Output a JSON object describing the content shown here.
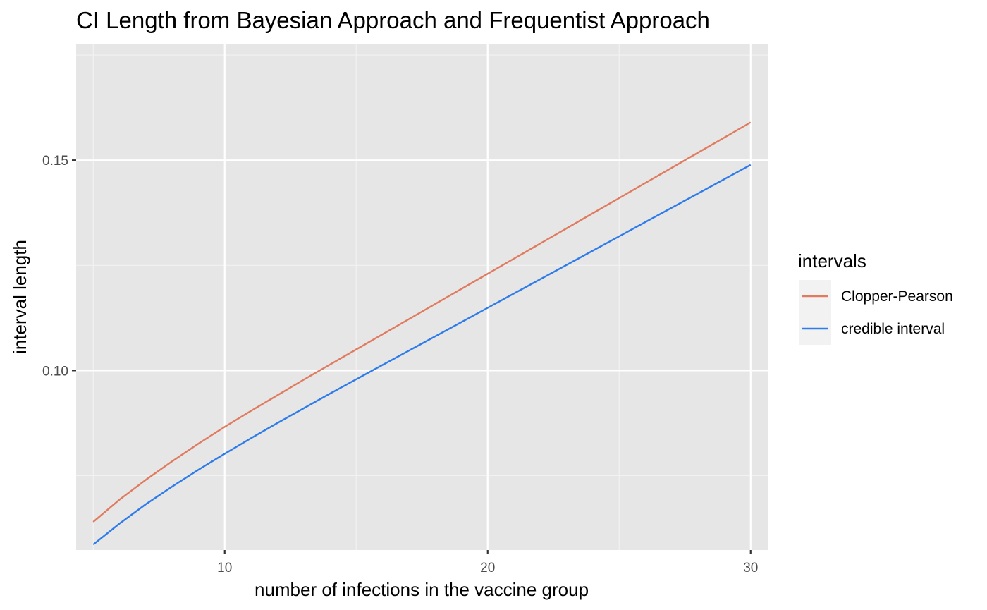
{
  "chart_data": {
    "type": "line",
    "title": "CI Length from Bayesian Approach and Frequentist Approach",
    "xlabel": "number of infections in the vaccine group",
    "ylabel": "interval length",
    "xlim": [
      4.35,
      30.65
    ],
    "ylim": [
      0.0573,
      0.1777
    ],
    "x_ticks": [
      10,
      20,
      30
    ],
    "x_tick_labels": [
      "10",
      "20",
      "30"
    ],
    "x_minor_ticks": [
      5,
      15,
      25
    ],
    "y_ticks": [
      0.1,
      0.15
    ],
    "y_tick_labels": [
      "0.10",
      "0.15"
    ],
    "y_minor_ticks": [
      0.075,
      0.125,
      0.175
    ],
    "grid": true,
    "legend": {
      "title": "intervals",
      "position": "right"
    },
    "x": [
      5,
      6,
      7,
      8,
      9,
      10,
      11,
      12,
      13,
      14,
      15,
      16,
      17,
      18,
      19,
      20,
      21,
      22,
      23,
      24,
      25,
      26,
      27,
      28,
      29,
      30
    ],
    "series": [
      {
        "name": "Clopper-Pearson",
        "color": "#e07b5f",
        "values": [
          0.064,
          0.0693,
          0.074,
          0.0784,
          0.0826,
          0.0866,
          0.0904,
          0.0941,
          0.0978,
          0.1014,
          0.105,
          0.1086,
          0.1122,
          0.1158,
          0.1194,
          0.123,
          0.1266,
          0.1302,
          0.1338,
          0.1374,
          0.141,
          0.1446,
          0.1482,
          0.1518,
          0.1554,
          0.159
        ]
      },
      {
        "name": "credible interval",
        "color": "#2e7bea",
        "values": [
          0.0586,
          0.0636,
          0.0682,
          0.0724,
          0.0764,
          0.0802,
          0.0839,
          0.0875,
          0.091,
          0.0945,
          0.0979,
          0.1013,
          0.1047,
          0.1081,
          0.1115,
          0.1149,
          0.1183,
          0.1217,
          0.1251,
          0.1285,
          0.1319,
          0.1353,
          0.1387,
          0.1421,
          0.1455,
          0.1489
        ]
      }
    ]
  }
}
